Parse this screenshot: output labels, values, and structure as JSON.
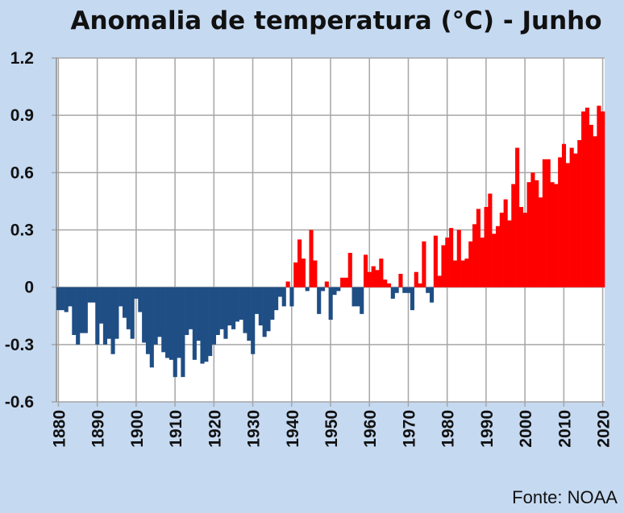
{
  "chart_data": {
    "type": "bar",
    "title": "Anomalia de temperatura (°C) - Junho",
    "source": "Fonte: NOAA",
    "xlabel": "",
    "ylabel": "",
    "ylim": [
      -0.6,
      1.2
    ],
    "yticks": [
      "1.2",
      "0.9",
      "0.6",
      "0.3",
      "0",
      "-0.3",
      "-0.6"
    ],
    "ytick_values": [
      1.2,
      0.9,
      0.6,
      0.3,
      0,
      -0.3,
      -0.6
    ],
    "xticks": [
      "1880",
      "1890",
      "1900",
      "1910",
      "1920",
      "1930",
      "1940",
      "1950",
      "1960",
      "1970",
      "1980",
      "1990",
      "2000",
      "2010",
      "2020"
    ],
    "grid": true,
    "start_year": 1880,
    "end_year": 2020,
    "colors": {
      "positive": "#ff0000",
      "negative": "#1f4e85",
      "background": "#c5d9f1",
      "grid": "#a6a6a6"
    },
    "values": [
      -0.12,
      -0.12,
      -0.13,
      -0.1,
      -0.25,
      -0.3,
      -0.24,
      -0.24,
      -0.08,
      -0.08,
      -0.3,
      -0.19,
      -0.3,
      -0.27,
      -0.35,
      -0.27,
      -0.1,
      -0.16,
      -0.22,
      -0.27,
      -0.06,
      -0.13,
      -0.29,
      -0.35,
      -0.42,
      -0.3,
      -0.26,
      -0.34,
      -0.37,
      -0.38,
      -0.47,
      -0.37,
      -0.47,
      -0.25,
      -0.22,
      -0.38,
      -0.28,
      -0.4,
      -0.39,
      -0.36,
      -0.3,
      -0.25,
      -0.22,
      -0.27,
      -0.2,
      -0.22,
      -0.18,
      -0.17,
      -0.24,
      -0.28,
      -0.35,
      -0.14,
      -0.2,
      -0.26,
      -0.23,
      -0.17,
      -0.12,
      -0.05,
      -0.1,
      0.03,
      -0.1,
      0.13,
      0.25,
      0.15,
      -0.02,
      0.3,
      0.14,
      -0.14,
      -0.02,
      0.03,
      -0.17,
      -0.04,
      -0.02,
      0.05,
      0.05,
      0.18,
      -0.1,
      -0.1,
      -0.14,
      0.17,
      0.08,
      0.11,
      0.09,
      0.15,
      0.04,
      0.02,
      -0.06,
      -0.03,
      0.07,
      -0.03,
      -0.03,
      -0.12,
      0.08,
      0.02,
      0.24,
      -0.03,
      -0.08,
      0.27,
      0.06,
      0.22,
      0.26,
      0.31,
      0.14,
      0.3,
      0.14,
      0.15,
      0.24,
      0.33,
      0.41,
      0.26,
      0.42,
      0.49,
      0.28,
      0.32,
      0.39,
      0.46,
      0.35,
      0.54,
      0.73,
      0.42,
      0.39,
      0.55,
      0.6,
      0.56,
      0.47,
      0.67,
      0.67,
      0.55,
      0.54,
      0.68,
      0.75,
      0.65,
      0.73,
      0.7,
      0.77,
      0.92,
      0.94,
      0.85,
      0.79,
      0.95,
      0.92
    ]
  }
}
